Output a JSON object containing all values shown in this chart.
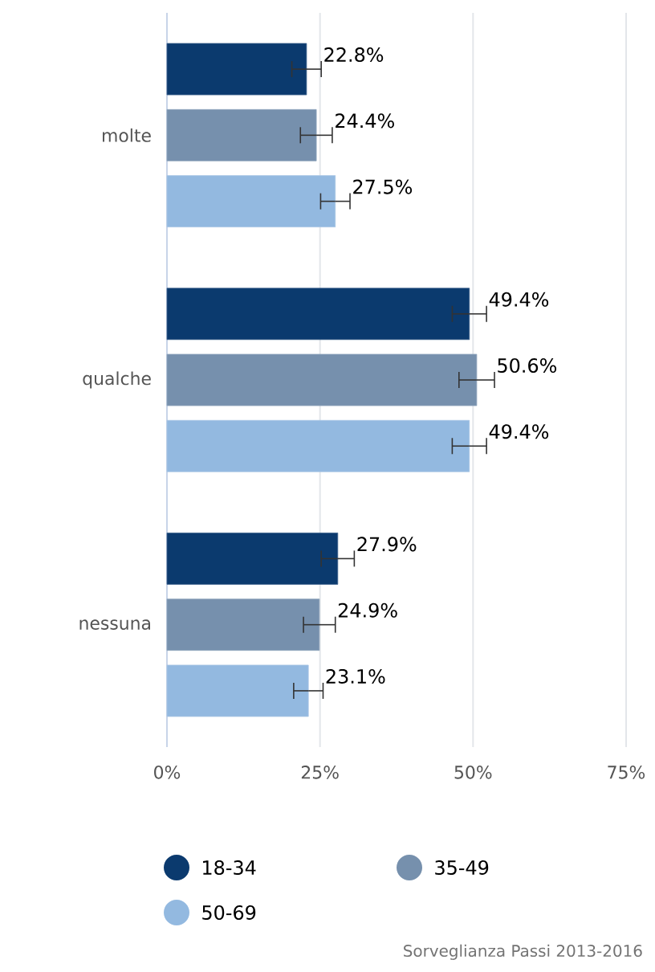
{
  "chart_data": {
    "type": "bar",
    "orientation": "horizontal",
    "categories": [
      "molte",
      "qualche",
      "nessuna"
    ],
    "series": [
      {
        "name": "18-34",
        "color": "#0b3a6e",
        "values": [
          22.8,
          49.4,
          27.9
        ],
        "errors": [
          2.4,
          2.8,
          2.7
        ],
        "value_labels": [
          "22.8%",
          "49.4%",
          "27.9%"
        ]
      },
      {
        "name": "35-49",
        "color": "#7690ad",
        "values": [
          24.4,
          50.6,
          24.9
        ],
        "errors": [
          2.6,
          2.9,
          2.6
        ],
        "value_labels": [
          "24.4%",
          "50.6%",
          "24.9%"
        ]
      },
      {
        "name": "50-69",
        "color": "#93b9e0",
        "values": [
          27.5,
          49.4,
          23.1
        ],
        "errors": [
          2.4,
          2.8,
          2.4
        ],
        "value_labels": [
          "27.5%",
          "49.4%",
          "23.1%"
        ]
      }
    ],
    "xlim": [
      0,
      75
    ],
    "xticks": [
      {
        "value": 0,
        "label": "0%"
      },
      {
        "value": 25,
        "label": "25%"
      },
      {
        "value": 50,
        "label": "50%"
      },
      {
        "value": 75,
        "label": "75%"
      }
    ],
    "grid": "x",
    "legend": "bottom",
    "annotations": [
      "Sorveglianza Passi 2013-2016"
    ]
  }
}
